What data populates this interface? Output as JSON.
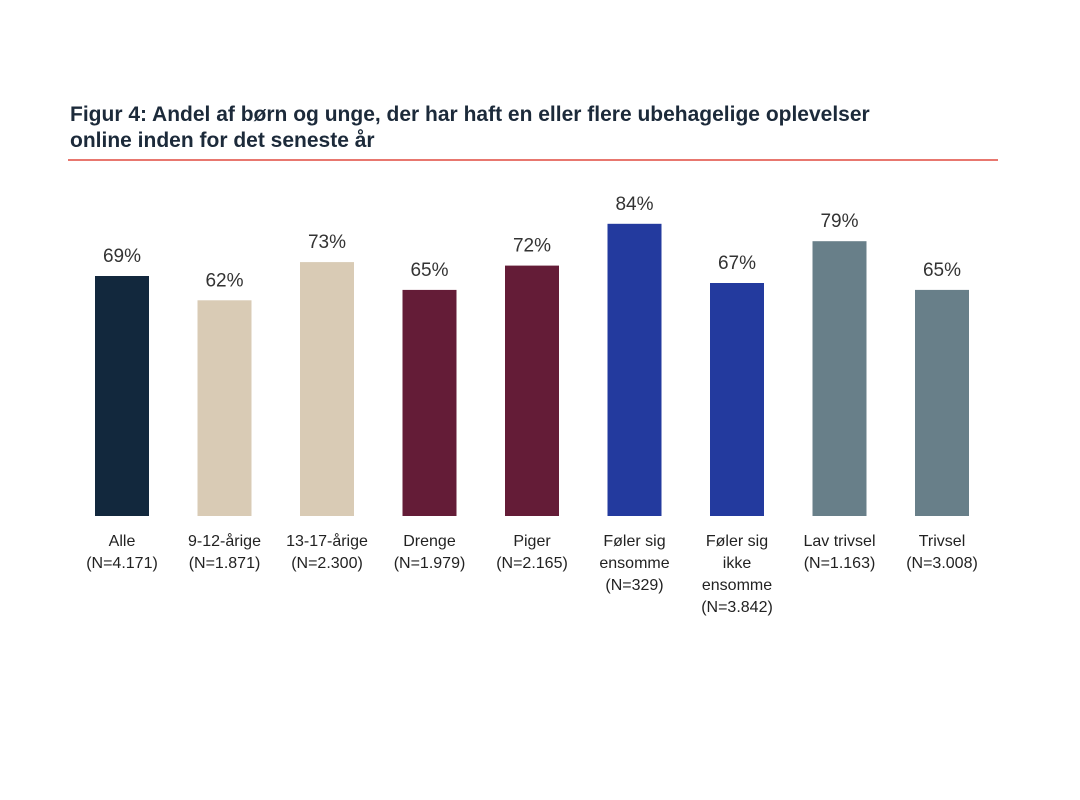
{
  "figure": {
    "title_line1": "Figur 4: Andel af børn og unge, der har haft en eller flere ubehagelige oplevelser",
    "title_line2": "online inden for det seneste år",
    "rule_color": "#e8776f"
  },
  "chart_data": {
    "type": "bar",
    "title": "Figur 4: Andel af børn og unge, der har haft en eller flere ubehagelige oplevelser online inden for det seneste år",
    "xlabel": "",
    "ylabel": "",
    "unit": "%",
    "ylim": [
      0,
      100
    ],
    "grid": false,
    "legend": "none",
    "categories": [
      [
        "Alle",
        "(N=4.171)"
      ],
      [
        "9-12-årige",
        "(N=1.871)"
      ],
      [
        "13-17-årige",
        "(N=2.300)"
      ],
      [
        "Drenge",
        "(N=1.979)"
      ],
      [
        "Piger",
        "(N=2.165)"
      ],
      [
        "Føler sig",
        "ensomme",
        "(N=329)"
      ],
      [
        "Føler sig",
        "ikke",
        "ensomme",
        "(N=3.842)"
      ],
      [
        "Lav trivsel",
        "(N=1.163)"
      ],
      [
        "Trivsel",
        "(N=3.008)"
      ]
    ],
    "values": [
      69,
      62,
      73,
      65,
      72,
      84,
      67,
      79,
      65
    ],
    "value_labels": [
      "69%",
      "62%",
      "73%",
      "65%",
      "72%",
      "84%",
      "67%",
      "79%",
      "65%"
    ],
    "colors": [
      "#12283d",
      "#d9cbb5",
      "#d9cbb5",
      "#641c37",
      "#641c37",
      "#233a9e",
      "#233a9e",
      "#687f89",
      "#687f89"
    ]
  }
}
